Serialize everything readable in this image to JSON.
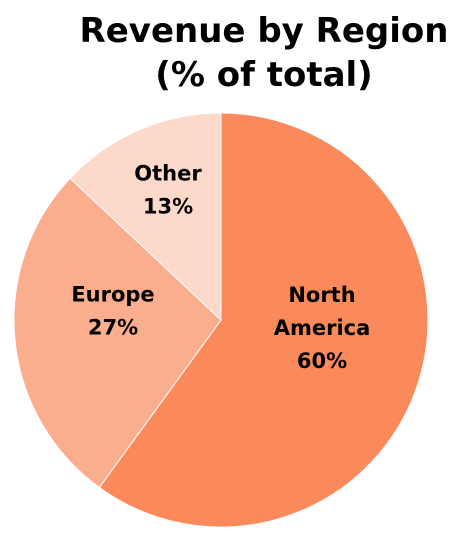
{
  "chart_data": {
    "type": "pie",
    "title": [
      "Revenue by Region",
      "(% of total)"
    ],
    "slices": [
      {
        "label": [
          "North",
          "America",
          "60%"
        ],
        "value": 60,
        "color": "#FA8A5C"
      },
      {
        "label": [
          "Europe",
          "27%"
        ],
        "value": 27,
        "color": "#FBAE8D"
      },
      {
        "label": [
          "Other",
          "13%"
        ],
        "value": 13,
        "color": "#FDD9C9"
      }
    ],
    "legend": "none"
  }
}
